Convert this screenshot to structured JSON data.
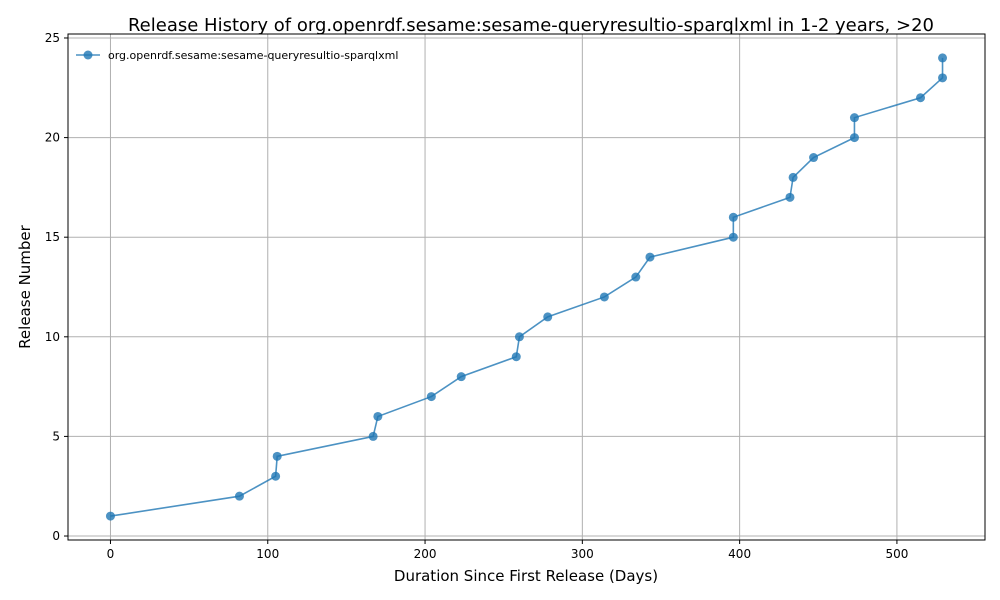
{
  "chart_data": {
    "type": "line",
    "title": "Release History of org.openrdf.sesame:sesame-queryresultio-sparqlxml in 1-2 years, >20",
    "xlabel": "Duration Since First Release (Days)",
    "ylabel": "Release Number",
    "xlim": [
      -27,
      556
    ],
    "ylim": [
      -0.2,
      25.2
    ],
    "xticks": [
      0,
      100,
      200,
      300,
      400,
      500
    ],
    "yticks": [
      0,
      5,
      10,
      15,
      20,
      25
    ],
    "grid": true,
    "legend_position": "top-left",
    "series": [
      {
        "name": "org.openrdf.sesame:sesame-queryresultio-sparqlxml",
        "color": "#1f77b4",
        "marker": "circle",
        "x": [
          0,
          82,
          105,
          106,
          167,
          170,
          204,
          223,
          258,
          260,
          278,
          314,
          334,
          343,
          396,
          396,
          432,
          434,
          447,
          473,
          473,
          515,
          529,
          529
        ],
        "y": [
          1,
          2,
          3,
          4,
          5,
          6,
          7,
          8,
          9,
          10,
          11,
          12,
          13,
          14,
          15,
          16,
          17,
          18,
          19,
          20,
          21,
          22,
          23,
          24
        ]
      }
    ]
  }
}
